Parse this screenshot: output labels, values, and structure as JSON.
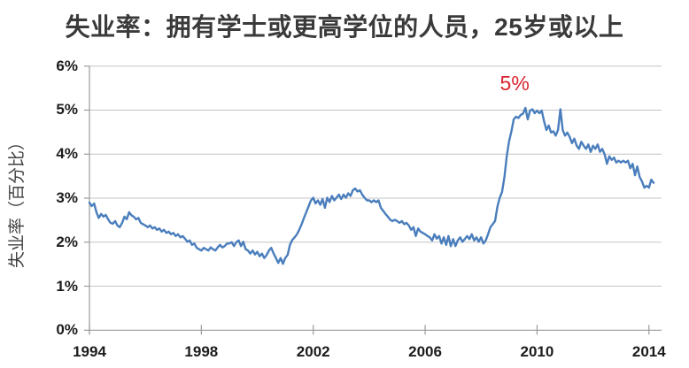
{
  "chart": {
    "title": "失业率：拥有学士或更高学位的人员，25岁或以上",
    "y_axis_title": "失业率（百分比）"
  },
  "chart_data": {
    "type": "line",
    "title": "失业率：拥有学士或更高学位的人员，25岁或以上",
    "xlabel": "",
    "ylabel": "失业率（百分比）",
    "grid": "horizontal",
    "legend": "none",
    "xlim": [
      1994,
      2014.45
    ],
    "ylim": [
      0,
      6
    ],
    "x_ticks": [
      1994,
      1998,
      2002,
      2006,
      2010,
      2014
    ],
    "x_tick_labels": [
      "1994",
      "1998",
      "2002",
      "2006",
      "2010",
      "2014"
    ],
    "y_ticks": [
      0,
      1,
      2,
      3,
      4,
      5,
      6
    ],
    "y_tick_labels": [
      "0%",
      "1%",
      "2%",
      "3%",
      "4%",
      "5%",
      "6%"
    ],
    "line_color": "#4a7ebc",
    "grid_color": "#c4c4c4",
    "axis_color": "#9b9b9b",
    "series": [
      {
        "name": "失业率",
        "color": "#4a7ebc",
        "frequency": "monthly",
        "start_year": 1994,
        "values": [
          2.9,
          2.82,
          2.88,
          2.68,
          2.55,
          2.64,
          2.58,
          2.62,
          2.52,
          2.44,
          2.42,
          2.48,
          2.38,
          2.34,
          2.44,
          2.58,
          2.52,
          2.68,
          2.61,
          2.58,
          2.52,
          2.55,
          2.44,
          2.41,
          2.38,
          2.34,
          2.38,
          2.31,
          2.34,
          2.28,
          2.31,
          2.24,
          2.28,
          2.21,
          2.24,
          2.18,
          2.21,
          2.14,
          2.18,
          2.11,
          2.14,
          2.08,
          2.01,
          2.04,
          1.94,
          1.97,
          1.87,
          1.84,
          1.81,
          1.87,
          1.84,
          1.81,
          1.88,
          1.84,
          1.81,
          1.88,
          1.94,
          1.88,
          1.91,
          1.97,
          1.97,
          2.0,
          1.91,
          2.0,
          2.04,
          1.91,
          2.01,
          1.84,
          1.81,
          1.74,
          1.81,
          1.72,
          1.78,
          1.68,
          1.74,
          1.64,
          1.71,
          1.81,
          1.87,
          1.74,
          1.64,
          1.53,
          1.64,
          1.51,
          1.64,
          1.71,
          1.94,
          2.05,
          2.11,
          2.18,
          2.28,
          2.41,
          2.55,
          2.68,
          2.81,
          2.95,
          3.01,
          2.88,
          2.95,
          2.85,
          2.98,
          2.78,
          3.01,
          2.91,
          3.05,
          2.95,
          3.01,
          3.08,
          2.98,
          3.08,
          3.01,
          3.11,
          3.05,
          3.18,
          3.22,
          3.15,
          3.18,
          3.08,
          3.01,
          2.95,
          2.95,
          2.91,
          2.95,
          2.91,
          2.95,
          2.78,
          2.71,
          2.64,
          2.58,
          2.51,
          2.48,
          2.51,
          2.48,
          2.44,
          2.48,
          2.41,
          2.44,
          2.38,
          2.28,
          2.34,
          2.14,
          2.31,
          2.24,
          2.21,
          2.18,
          2.14,
          2.11,
          2.04,
          2.18,
          2.08,
          2.14,
          1.97,
          2.11,
          1.94,
          2.14,
          1.91,
          2.07,
          1.91,
          2.04,
          2.11,
          2.01,
          2.07,
          2.14,
          2.07,
          2.18,
          2.04,
          2.11,
          2.01,
          2.11,
          1.97,
          2.04,
          2.18,
          2.34,
          2.41,
          2.48,
          2.81,
          3.01,
          3.14,
          3.48,
          3.95,
          4.29,
          4.52,
          4.79,
          4.85,
          4.82,
          4.89,
          4.92,
          5.05,
          4.79,
          4.99,
          5.02,
          4.93,
          4.99,
          4.93,
          4.99,
          4.75,
          4.55,
          4.65,
          4.49,
          4.52,
          4.42,
          4.55,
          5.02,
          4.55,
          4.42,
          4.49,
          4.39,
          4.25,
          4.35,
          4.19,
          4.12,
          4.28,
          4.19,
          4.12,
          4.22,
          4.05,
          4.19,
          4.12,
          4.22,
          4.05,
          4.12,
          3.99,
          3.78,
          3.95,
          3.87,
          3.92,
          3.81,
          3.85,
          3.81,
          3.85,
          3.81,
          3.85,
          3.68,
          3.78,
          3.52,
          3.72,
          3.48,
          3.38,
          3.24,
          3.28,
          3.24,
          3.42,
          3.35
        ]
      }
    ],
    "annotations": [
      {
        "text": "5%",
        "x": 2009.2,
        "y": 5.6,
        "color": "#d9232e"
      }
    ]
  }
}
